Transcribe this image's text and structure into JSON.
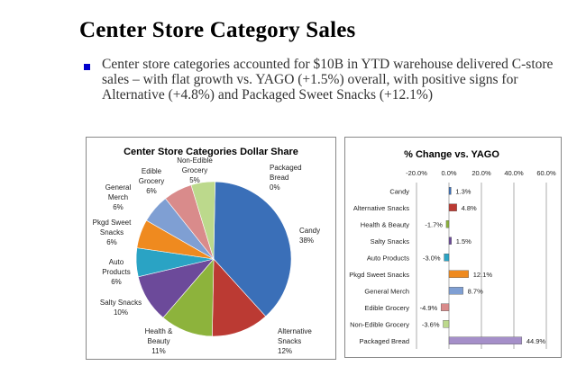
{
  "slide": {
    "title": "Center Store Category Sales",
    "bullet": "Center store categories accounted for $10B in YTD warehouse delivered C-store sales – with flat growth vs. YAGO (+1.5%) overall, with positive signs for Alternative (+4.8%) and Packaged Sweet Snacks (+12.1%)",
    "bullet_color": "#0000cc"
  },
  "chart_data": [
    {
      "type": "pie",
      "title": "Center Store Categories Dollar Share",
      "slices": [
        {
          "label": "Packaged Bread",
          "value": 0,
          "display": "0%",
          "color": "#8b78b0"
        },
        {
          "label": "Candy",
          "value": 38,
          "display": "38%",
          "color": "#3a6fb8"
        },
        {
          "label": "Alternative Snacks",
          "value": 12,
          "display": "12%",
          "color": "#bb3a33"
        },
        {
          "label": "Health & Beauty",
          "value": 11,
          "display": "11%",
          "color": "#8db33c"
        },
        {
          "label": "Salty Snacks",
          "value": 10,
          "display": "10%",
          "color": "#6c4a9a"
        },
        {
          "label": "Auto Products",
          "value": 6,
          "display": "6%",
          "color": "#2aa3c4"
        },
        {
          "label": "Pkgd Sweet Snacks",
          "value": 6,
          "display": "6%",
          "color": "#ef8a1f"
        },
        {
          "label": "General Merch",
          "value": 6,
          "display": "6%",
          "color": "#7f9fd3"
        },
        {
          "label": "Edible Grocery",
          "value": 6,
          "display": "6%",
          "color": "#d98b8b"
        },
        {
          "label": "Non-Edible Grocery",
          "value": 5,
          "display": "5%",
          "color": "#bcd98c"
        }
      ]
    },
    {
      "type": "bar",
      "orientation": "horizontal",
      "title": "% Change vs. YAGO",
      "xlim": [
        -20,
        60
      ],
      "xticks": [
        "-20.0%",
        "0.0%",
        "20.0%",
        "40.0%",
        "60.0%"
      ],
      "grid": true,
      "categories": [
        "Candy",
        "Alternative Snacks",
        "Health & Beauty",
        "Salty Snacks",
        "Auto Products",
        "Pkgd Sweet Snacks",
        "General Merch",
        "Edible Grocery",
        "Non-Edible Grocery",
        "Packaged Bread"
      ],
      "values": [
        1.3,
        4.8,
        -1.7,
        1.5,
        -3.0,
        12.1,
        8.7,
        -4.9,
        -3.6,
        44.9
      ],
      "labels": [
        "1.3%",
        "4.8%",
        "-1.7%",
        "1.5%",
        "-3.0%",
        "12.1%",
        "8.7%",
        "-4.9%",
        "-3.6%",
        "44.9%"
      ],
      "colors": [
        "#3a6fb8",
        "#bb3a33",
        "#8db33c",
        "#6c4a9a",
        "#2aa3c4",
        "#ef8a1f",
        "#7f9fd3",
        "#d98b8b",
        "#bcd98c",
        "#a58fc9"
      ]
    }
  ]
}
